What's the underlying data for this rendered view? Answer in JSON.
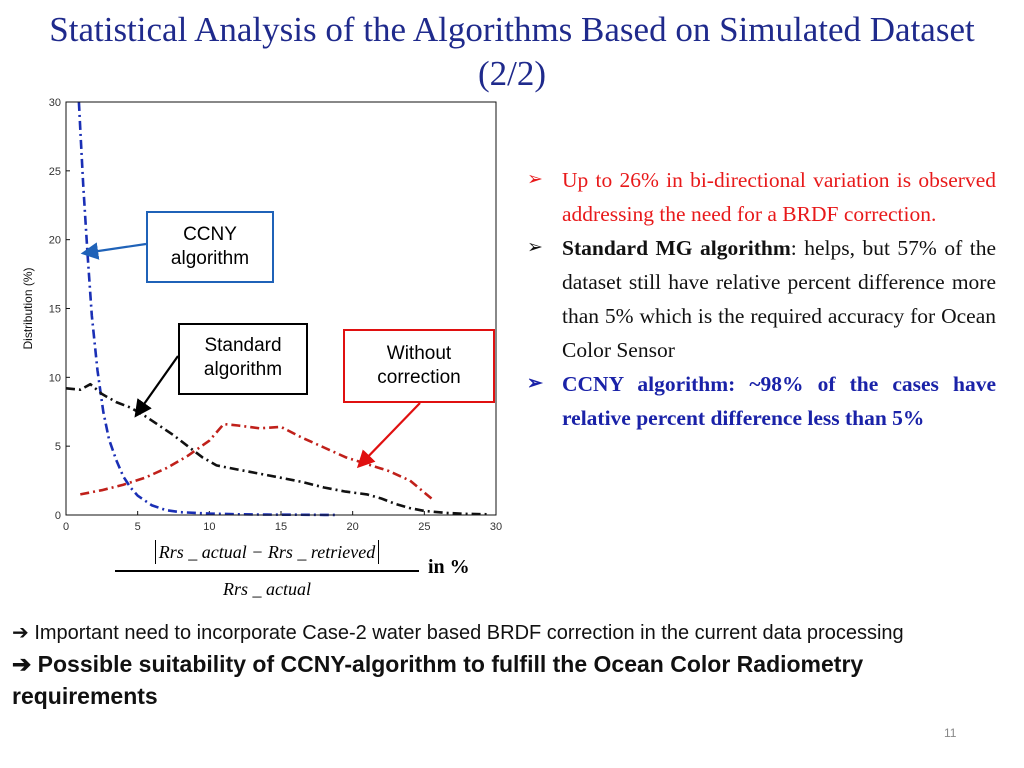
{
  "slide": {
    "title": "Statistical Analysis of the Algorithms Based on Simulated Dataset (2/2)",
    "page_number": "11"
  },
  "callouts": {
    "ccny": "CCNY algorithm",
    "standard": "Standard algorithm",
    "without": "Without correction"
  },
  "bullets": [
    {
      "marker": "➢",
      "text": "Up to 26% in bi-directional variation is observed addressing the need for a BRDF correction."
    },
    {
      "marker": "➢",
      "lead": "Standard MG algorithm",
      "text": ": helps, but 57% of the dataset still have relative percent difference more than 5% which is the required accuracy for Ocean Color Sensor"
    },
    {
      "marker": "➢",
      "text": "CCNY algorithm: ~98% of the cases have relative percent difference less than 5%"
    }
  ],
  "formula": {
    "numerator": "Rrs _ actual − Rrs _ retrieved",
    "denominator": "Rrs _ actual",
    "unit": "in %"
  },
  "bottom": {
    "line1": "➔ Important need to incorporate Case-2 water based BRDF correction in the current data processing",
    "line2": "➔ Possible suitability of CCNY-algorithm to fulfill the Ocean Color Radiometry requirements"
  },
  "chart_data": {
    "type": "line",
    "title": "",
    "xlabel": "",
    "ylabel": "Distribution (%)",
    "xlim": [
      0,
      30
    ],
    "ylim": [
      0,
      30
    ],
    "xticks": [
      0,
      5,
      10,
      15,
      20,
      25,
      30
    ],
    "yticks": [
      0,
      5,
      10,
      15,
      20,
      25,
      30
    ],
    "grid": false,
    "series": [
      {
        "name": "CCNY algorithm",
        "color": "#1a2fb5",
        "dash": "dashdot",
        "x": [
          0.9,
          1.0,
          1.2,
          1.5,
          1.8,
          2.2,
          2.6,
          3.0,
          3.5,
          4.0,
          4.5,
          5.0,
          6.0,
          7.0,
          8.0,
          10.0,
          12.0,
          14.0,
          16.0,
          18.0,
          19.0
        ],
        "y": [
          30.0,
          28.0,
          24.0,
          19.0,
          14.5,
          10.5,
          7.5,
          5.5,
          4.0,
          2.8,
          2.0,
          1.4,
          0.7,
          0.35,
          0.2,
          0.1,
          0.05,
          0.03,
          0.02,
          0.01,
          0.0
        ]
      },
      {
        "name": "Standard algorithm",
        "color": "#111111",
        "dash": "dashdot",
        "x": [
          0.0,
          1.0,
          1.7,
          2.5,
          3.5,
          4.5,
          5.5,
          6.5,
          7.5,
          8.5,
          9.5,
          10.5,
          12.0,
          13.5,
          15.0,
          16.5,
          18.0,
          19.5,
          21.0,
          22.0,
          23.0,
          24.0,
          25.0,
          26.5,
          28.0,
          29.5
        ],
        "y": [
          9.2,
          9.1,
          9.5,
          8.8,
          8.2,
          7.8,
          7.2,
          6.5,
          5.8,
          5.0,
          4.2,
          3.6,
          3.3,
          3.0,
          2.7,
          2.4,
          2.0,
          1.7,
          1.5,
          1.2,
          0.8,
          0.5,
          0.3,
          0.15,
          0.08,
          0.05
        ]
      },
      {
        "name": "Without correction",
        "color": "#c0201a",
        "dash": "dashdot",
        "x": [
          1.0,
          2.5,
          4.0,
          5.5,
          7.0,
          8.5,
          10.0,
          11.0,
          12.0,
          13.5,
          15.0,
          16.5,
          18.0,
          19.5,
          21.0,
          22.5,
          24.0,
          25.5
        ],
        "y": [
          1.5,
          1.8,
          2.2,
          2.7,
          3.4,
          4.3,
          5.4,
          6.6,
          6.5,
          6.3,
          6.4,
          5.6,
          4.9,
          4.2,
          3.7,
          3.2,
          2.5,
          1.2
        ]
      }
    ]
  }
}
